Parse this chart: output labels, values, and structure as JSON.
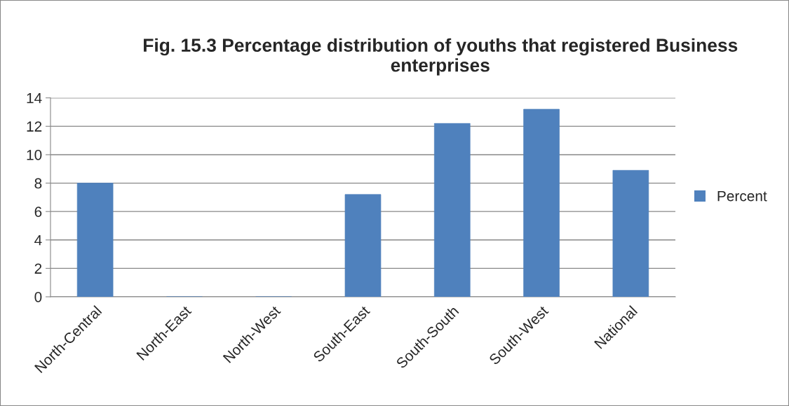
{
  "chart_data": {
    "type": "bar",
    "title": "Fig. 15.3 Percentage distribution of youths that registered Business enterprises",
    "categories": [
      "North-Central",
      "North-East",
      "North-West",
      "South-East",
      "South-South",
      "South-West",
      "National"
    ],
    "series": [
      {
        "name": "Percent",
        "color": "#4f81bd",
        "values": [
          8,
          0,
          0,
          7.2,
          12.2,
          13.2,
          8.9
        ]
      }
    ],
    "ylim": [
      0,
      14
    ],
    "yticks": [
      0,
      2,
      4,
      6,
      8,
      10,
      12,
      14
    ],
    "grid": "y",
    "legend": "right"
  }
}
